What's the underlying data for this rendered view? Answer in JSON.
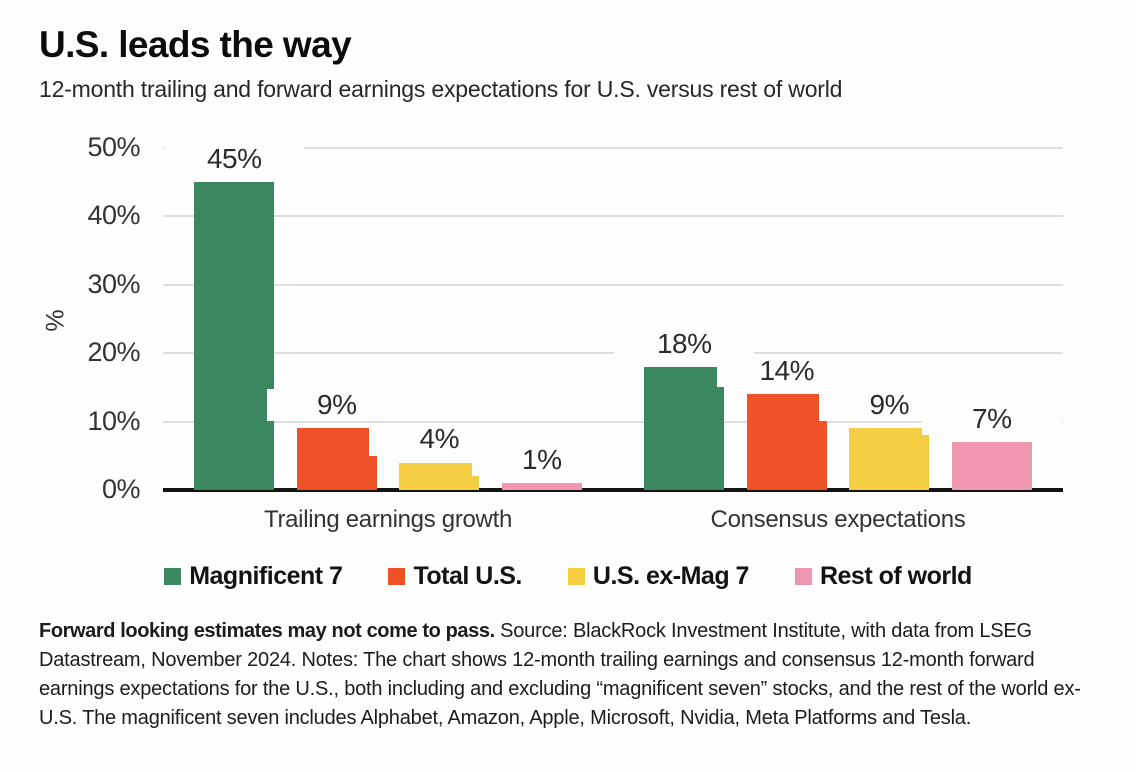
{
  "header": {
    "title": "U.S. leads the way",
    "subtitle": "12-month trailing and forward earnings expectations for U.S. versus rest of world"
  },
  "chart_data": {
    "type": "bar",
    "title": "U.S. leads the way",
    "xlabel": "",
    "ylabel": "%",
    "ylim": [
      0,
      50
    ],
    "yticks": [
      0,
      10,
      20,
      30,
      40,
      50
    ],
    "ytick_labels": [
      "0%",
      "10%",
      "20%",
      "30%",
      "40%",
      "50%"
    ],
    "grid": "horizontal",
    "legend_position": "bottom",
    "categories": [
      "Trailing earnings growth",
      "Consensus expectations"
    ],
    "series": [
      {
        "name": "Magnificent 7",
        "color": "#3a8760",
        "values": [
          45,
          18
        ],
        "labels": [
          "45%",
          "18%"
        ]
      },
      {
        "name": "Total U.S.",
        "color": "#ee5226",
        "values": [
          9,
          14
        ],
        "labels": [
          "9%",
          "14%"
        ]
      },
      {
        "name": "U.S. ex-Mag 7",
        "color": "#f5cd43",
        "values": [
          4,
          9
        ],
        "labels": [
          "4%",
          "9%"
        ]
      },
      {
        "name": "Rest of world",
        "color": "#ef97ae",
        "values": [
          1,
          7
        ],
        "labels": [
          "1%",
          "7%"
        ]
      }
    ]
  },
  "footnote": {
    "bold": "Forward looking estimates may not come to pass.",
    "rest": " Source: BlackRock Investment Institute, with data from LSEG Datastream, November 2024. Notes: The chart shows 12-month trailing earnings and consensus 12-month forward earnings expectations for the U.S., both including and excluding “magnificent seven” stocks, and the rest of the world ex-U.S. The magnificent seven includes Alphabet, Amazon, Apple, Microsoft, Nvidia, Meta Platforms and Tesla."
  }
}
